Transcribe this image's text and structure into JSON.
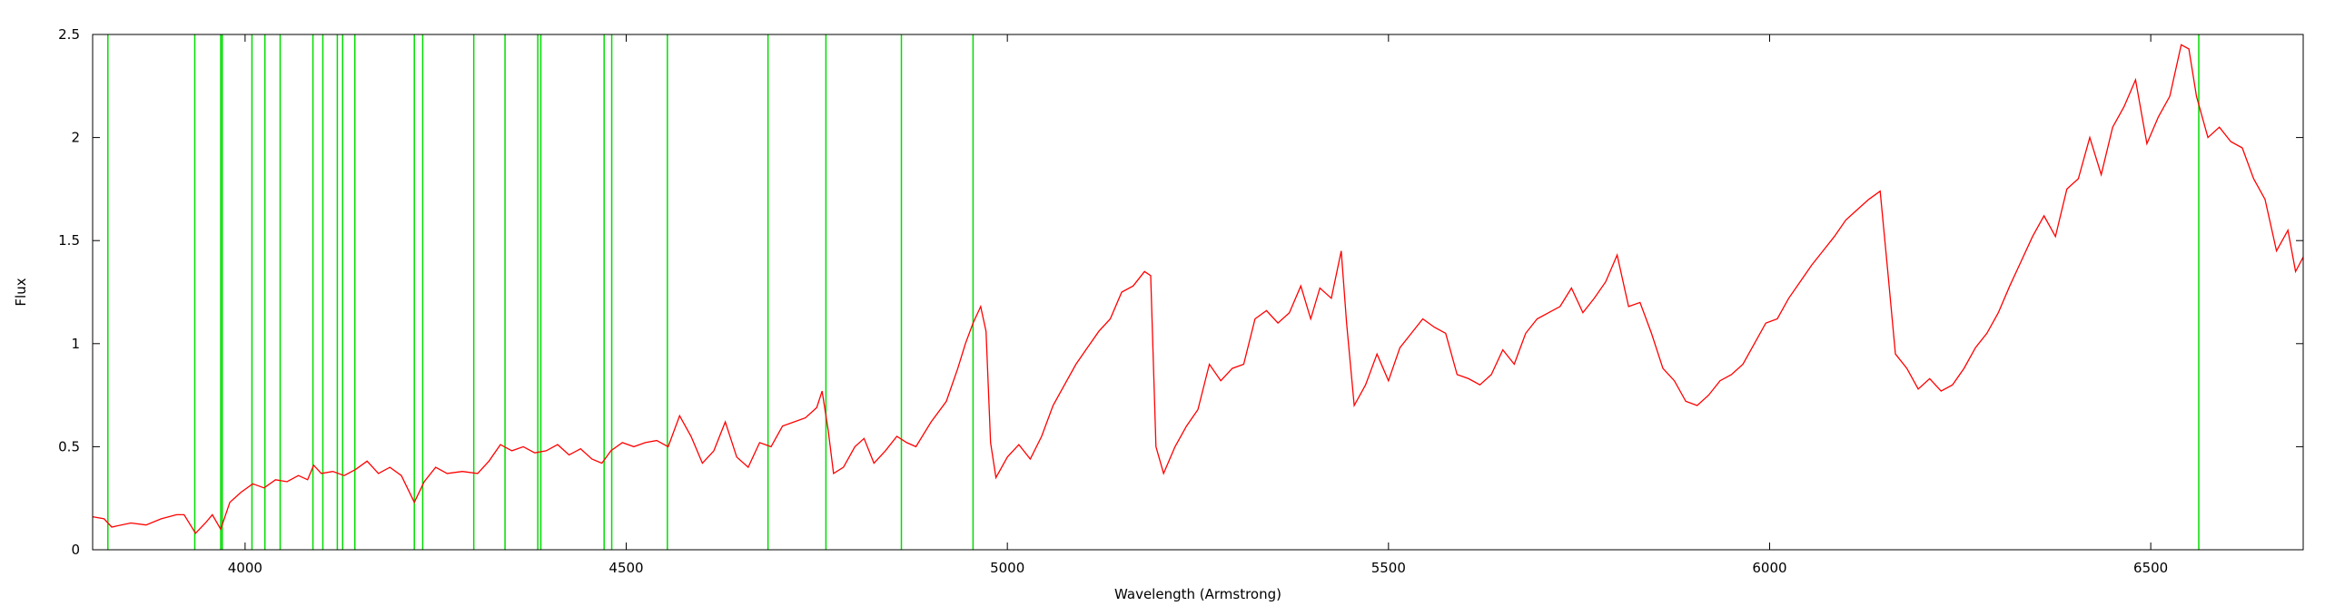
{
  "chart_data": {
    "type": "line",
    "title": "",
    "xlabel": "Wavelength (Armstrong)",
    "ylabel": "Flux",
    "xlim": [
      3800,
      6700
    ],
    "ylim": [
      0,
      2.5
    ],
    "x_ticks": [
      4000,
      4500,
      5000,
      5500,
      6000,
      6500
    ],
    "y_ticks": [
      0,
      0.5,
      1,
      1.5,
      2,
      2.5
    ],
    "x_tick_labels": [
      "4000",
      "4500",
      "5000",
      "5500",
      "6000",
      "6500"
    ],
    "y_tick_labels": [
      "0",
      "0.5",
      "1",
      "1.5",
      "2",
      "2.5"
    ],
    "grid": false,
    "colors": {
      "spectrum": "#ff0000",
      "lines": "#00dd00",
      "axes": "#000000"
    },
    "series": [
      {
        "values": [
          [
            3800,
            0.16
          ],
          [
            3815,
            0.15
          ],
          [
            3825,
            0.11
          ],
          [
            3850,
            0.13
          ],
          [
            3870,
            0.12
          ],
          [
            3890,
            0.15
          ],
          [
            3910,
            0.17
          ],
          [
            3920,
            0.17
          ],
          [
            3935,
            0.08
          ],
          [
            3948,
            0.13
          ],
          [
            3957,
            0.17
          ],
          [
            3968,
            0.1
          ],
          [
            3980,
            0.23
          ],
          [
            3995,
            0.28
          ],
          [
            4010,
            0.32
          ],
          [
            4025,
            0.3
          ],
          [
            4040,
            0.34
          ],
          [
            4055,
            0.33
          ],
          [
            4070,
            0.36
          ],
          [
            4082,
            0.34
          ],
          [
            4090,
            0.41
          ],
          [
            4100,
            0.37
          ],
          [
            4115,
            0.38
          ],
          [
            4130,
            0.36
          ],
          [
            4145,
            0.39
          ],
          [
            4160,
            0.43
          ],
          [
            4175,
            0.37
          ],
          [
            4190,
            0.4
          ],
          [
            4205,
            0.36
          ],
          [
            4222,
            0.23
          ],
          [
            4235,
            0.33
          ],
          [
            4250,
            0.4
          ],
          [
            4265,
            0.37
          ],
          [
            4285,
            0.38
          ],
          [
            4305,
            0.37
          ],
          [
            4320,
            0.43
          ],
          [
            4335,
            0.51
          ],
          [
            4350,
            0.48
          ],
          [
            4365,
            0.5
          ],
          [
            4380,
            0.47
          ],
          [
            4395,
            0.48
          ],
          [
            4410,
            0.51
          ],
          [
            4425,
            0.46
          ],
          [
            4440,
            0.49
          ],
          [
            4455,
            0.44
          ],
          [
            4468,
            0.42
          ],
          [
            4480,
            0.48
          ],
          [
            4495,
            0.52
          ],
          [
            4510,
            0.5
          ],
          [
            4525,
            0.52
          ],
          [
            4540,
            0.53
          ],
          [
            4555,
            0.5
          ],
          [
            4570,
            0.65
          ],
          [
            4585,
            0.55
          ],
          [
            4600,
            0.42
          ],
          [
            4615,
            0.48
          ],
          [
            4630,
            0.62
          ],
          [
            4645,
            0.45
          ],
          [
            4660,
            0.4
          ],
          [
            4675,
            0.52
          ],
          [
            4690,
            0.5
          ],
          [
            4705,
            0.6
          ],
          [
            4720,
            0.62
          ],
          [
            4735,
            0.64
          ],
          [
            4750,
            0.69
          ],
          [
            4757,
            0.77
          ],
          [
            4765,
            0.58
          ],
          [
            4772,
            0.37
          ],
          [
            4785,
            0.4
          ],
          [
            4800,
            0.5
          ],
          [
            4812,
            0.54
          ],
          [
            4825,
            0.42
          ],
          [
            4840,
            0.48
          ],
          [
            4855,
            0.55
          ],
          [
            4868,
            0.52
          ],
          [
            4880,
            0.5
          ],
          [
            4900,
            0.62
          ],
          [
            4920,
            0.72
          ],
          [
            4935,
            0.88
          ],
          [
            4945,
            1.0
          ],
          [
            4955,
            1.1
          ],
          [
            4965,
            1.18
          ],
          [
            4972,
            1.06
          ],
          [
            4978,
            0.52
          ],
          [
            4985,
            0.35
          ],
          [
            5000,
            0.45
          ],
          [
            5015,
            0.51
          ],
          [
            5030,
            0.44
          ],
          [
            5045,
            0.55
          ],
          [
            5060,
            0.7
          ],
          [
            5075,
            0.8
          ],
          [
            5090,
            0.9
          ],
          [
            5105,
            0.98
          ],
          [
            5120,
            1.06
          ],
          [
            5135,
            1.12
          ],
          [
            5150,
            1.25
          ],
          [
            5165,
            1.28
          ],
          [
            5180,
            1.35
          ],
          [
            5188,
            1.33
          ],
          [
            5195,
            0.5
          ],
          [
            5205,
            0.37
          ],
          [
            5220,
            0.5
          ],
          [
            5235,
            0.6
          ],
          [
            5250,
            0.68
          ],
          [
            5265,
            0.9
          ],
          [
            5280,
            0.82
          ],
          [
            5295,
            0.88
          ],
          [
            5310,
            0.9
          ],
          [
            5325,
            1.12
          ],
          [
            5340,
            1.16
          ],
          [
            5355,
            1.1
          ],
          [
            5370,
            1.15
          ],
          [
            5385,
            1.28
          ],
          [
            5398,
            1.12
          ],
          [
            5410,
            1.27
          ],
          [
            5425,
            1.22
          ],
          [
            5438,
            1.45
          ],
          [
            5445,
            1.1
          ],
          [
            5455,
            0.7
          ],
          [
            5470,
            0.8
          ],
          [
            5485,
            0.95
          ],
          [
            5500,
            0.82
          ],
          [
            5515,
            0.98
          ],
          [
            5530,
            1.05
          ],
          [
            5545,
            1.12
          ],
          [
            5560,
            1.08
          ],
          [
            5575,
            1.05
          ],
          [
            5590,
            0.85
          ],
          [
            5605,
            0.83
          ],
          [
            5620,
            0.8
          ],
          [
            5635,
            0.85
          ],
          [
            5650,
            0.97
          ],
          [
            5665,
            0.9
          ],
          [
            5680,
            1.05
          ],
          [
            5695,
            1.12
          ],
          [
            5710,
            1.15
          ],
          [
            5725,
            1.18
          ],
          [
            5740,
            1.27
          ],
          [
            5755,
            1.15
          ],
          [
            5770,
            1.22
          ],
          [
            5785,
            1.3
          ],
          [
            5800,
            1.43
          ],
          [
            5815,
            1.18
          ],
          [
            5830,
            1.2
          ],
          [
            5845,
            1.05
          ],
          [
            5860,
            0.88
          ],
          [
            5875,
            0.82
          ],
          [
            5890,
            0.72
          ],
          [
            5905,
            0.7
          ],
          [
            5920,
            0.75
          ],
          [
            5935,
            0.82
          ],
          [
            5950,
            0.85
          ],
          [
            5965,
            0.9
          ],
          [
            5980,
            1.0
          ],
          [
            5995,
            1.1
          ],
          [
            6010,
            1.12
          ],
          [
            6025,
            1.22
          ],
          [
            6040,
            1.3
          ],
          [
            6055,
            1.38
          ],
          [
            6070,
            1.45
          ],
          [
            6085,
            1.52
          ],
          [
            6100,
            1.6
          ],
          [
            6115,
            1.65
          ],
          [
            6130,
            1.7
          ],
          [
            6145,
            1.74
          ],
          [
            6155,
            1.35
          ],
          [
            6165,
            0.95
          ],
          [
            6180,
            0.88
          ],
          [
            6195,
            0.78
          ],
          [
            6210,
            0.83
          ],
          [
            6225,
            0.77
          ],
          [
            6240,
            0.8
          ],
          [
            6255,
            0.88
          ],
          [
            6270,
            0.98
          ],
          [
            6285,
            1.05
          ],
          [
            6300,
            1.15
          ],
          [
            6315,
            1.28
          ],
          [
            6330,
            1.4
          ],
          [
            6345,
            1.52
          ],
          [
            6360,
            1.62
          ],
          [
            6375,
            1.52
          ],
          [
            6390,
            1.75
          ],
          [
            6405,
            1.8
          ],
          [
            6420,
            2.0
          ],
          [
            6435,
            1.82
          ],
          [
            6450,
            2.05
          ],
          [
            6465,
            2.15
          ],
          [
            6480,
            2.28
          ],
          [
            6495,
            1.97
          ],
          [
            6510,
            2.1
          ],
          [
            6525,
            2.2
          ],
          [
            6540,
            2.45
          ],
          [
            6550,
            2.43
          ],
          [
            6560,
            2.2
          ],
          [
            6575,
            2.0
          ],
          [
            6590,
            2.05
          ],
          [
            6605,
            1.98
          ],
          [
            6620,
            1.95
          ],
          [
            6635,
            1.8
          ],
          [
            6650,
            1.7
          ],
          [
            6665,
            1.45
          ],
          [
            6680,
            1.55
          ],
          [
            6690,
            1.35
          ],
          [
            6700,
            1.42
          ]
        ]
      }
    ],
    "vertical_lines": [
      3820,
      3934,
      3968,
      3970,
      4009,
      4026,
      4046,
      4089,
      4102,
      4121,
      4128,
      4144,
      4222,
      4233,
      4300,
      4341,
      4384,
      4388,
      4471,
      4481,
      4554,
      4686,
      4762,
      4861,
      4955,
      6563
    ]
  }
}
